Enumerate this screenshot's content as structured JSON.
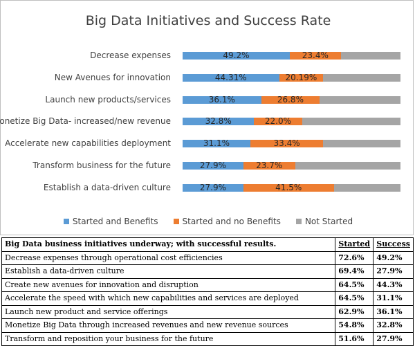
{
  "chart_data": {
    "type": "bar",
    "orientation": "horizontal-stacked",
    "title": "Big Data Initiatives and Success Rate",
    "categories": [
      "Decrease expenses",
      "New Avenues for innovation",
      "Launch new products/services",
      "Monetize Big Data- increased/new revenue",
      "Accelerate new capabilities deployment",
      "Transform business for the future",
      "Establish a data-driven culture"
    ],
    "series": [
      {
        "name": "Started and Benefits",
        "color": "#5b9bd5",
        "values": [
          49.2,
          44.31,
          36.1,
          32.8,
          31.1,
          27.9,
          27.9
        ],
        "labels": [
          "49.2%",
          "44.31%",
          "36.1%",
          "32.8%",
          "31.1%",
          "27.9%",
          "27.9%"
        ]
      },
      {
        "name": "Started and no Benefits",
        "color": "#ed7d31",
        "values": [
          23.4,
          20.19,
          26.8,
          22.0,
          33.4,
          23.7,
          41.5
        ],
        "labels": [
          "23.4%",
          "20.19%",
          "26.8%",
          "22.0%",
          "33.4%",
          "23.7%",
          "41.5%"
        ]
      },
      {
        "name": "Not Started",
        "color": "#a5a5a5",
        "values": [
          27.4,
          35.5,
          37.1,
          45.2,
          35.5,
          48.4,
          30.6
        ],
        "labels": [
          "",
          "",
          "",
          "",
          "",
          "",
          ""
        ]
      }
    ],
    "xlim": [
      0,
      100
    ],
    "legend": "bottom"
  },
  "table": {
    "header": "Big Data business initiatives underway; with successful results.",
    "col_started": "Started",
    "col_success": "Success",
    "rows": [
      {
        "label": "Decrease expenses through operational cost efficiencies",
        "started": "72.6%",
        "success": "49.2%"
      },
      {
        "label": "Establish a data-driven culture",
        "started": "69.4%",
        "success": "27.9%"
      },
      {
        "label": "Create new avenues for innovation and disruption",
        "started": "64.5%",
        "success": "44.3%"
      },
      {
        "label": "Accelerate the speed with which new capabilities and services are deployed",
        "started": "64.5%",
        "success": "31.1%"
      },
      {
        "label": "Launch new product and service offerings",
        "started": "62.9%",
        "success": "36.1%"
      },
      {
        "label": "Monetize Big Data through increased revenues and new revenue sources",
        "started": "54.8%",
        "success": "32.8%"
      },
      {
        "label": "Transform and reposition your business for the future",
        "started": "51.6%",
        "success": "27.9%"
      }
    ]
  }
}
